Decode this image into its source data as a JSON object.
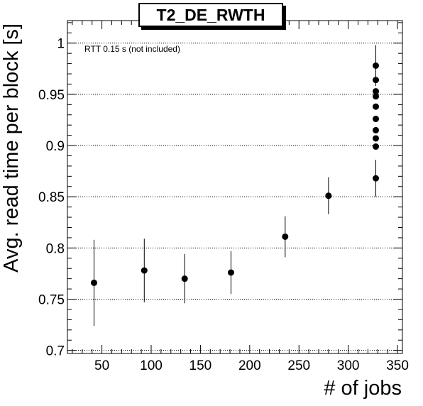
{
  "chart_data": {
    "type": "scatter",
    "title": "T2_DE_RWTH",
    "xlabel": "# of jobs",
    "ylabel": "Avg. read time per block [s]",
    "annotation": "RTT 0.15 s (not included)",
    "xlim": [
      15,
      355
    ],
    "ylim": [
      0.697,
      1.022
    ],
    "x_ticks": [
      50,
      100,
      150,
      200,
      250,
      300,
      350
    ],
    "y_ticks": [
      0.7,
      0.75,
      0.8,
      0.85,
      0.9,
      0.95,
      1
    ],
    "x_tick_labels": [
      "50",
      "100",
      "150",
      "200",
      "250",
      "300",
      "350"
    ],
    "y_tick_labels": [
      "0.7",
      "0.75",
      "0.8",
      "0.85",
      "0.9",
      "0.95",
      "1"
    ],
    "grid": {
      "x": false,
      "y": true
    },
    "points": [
      {
        "x": 42,
        "y": 0.766,
        "err": 0.042
      },
      {
        "x": 93,
        "y": 0.778,
        "err": 0.031
      },
      {
        "x": 134,
        "y": 0.77,
        "err": 0.024
      },
      {
        "x": 181,
        "y": 0.776,
        "err": 0.021
      },
      {
        "x": 236,
        "y": 0.811,
        "err": 0.02
      },
      {
        "x": 280,
        "y": 0.851,
        "err": 0.018
      },
      {
        "x": 328,
        "y": 0.868,
        "err": 0.018
      },
      {
        "x": 328,
        "y": 0.899,
        "err": 0.0
      },
      {
        "x": 328,
        "y": 0.907,
        "err": 0.0
      },
      {
        "x": 328,
        "y": 0.915,
        "err": 0.0
      },
      {
        "x": 328,
        "y": 0.926,
        "err": 0.0
      },
      {
        "x": 328,
        "y": 0.938,
        "err": 0.0
      },
      {
        "x": 328,
        "y": 0.948,
        "err": 0.0
      },
      {
        "x": 328,
        "y": 0.953,
        "err": 0.0
      },
      {
        "x": 328,
        "y": 0.964,
        "err": 0.0
      },
      {
        "x": 328,
        "y": 0.978,
        "err": 0.02
      }
    ],
    "colors": {
      "marker": "#000000",
      "grid": "#000000",
      "frame": "#000000"
    }
  }
}
